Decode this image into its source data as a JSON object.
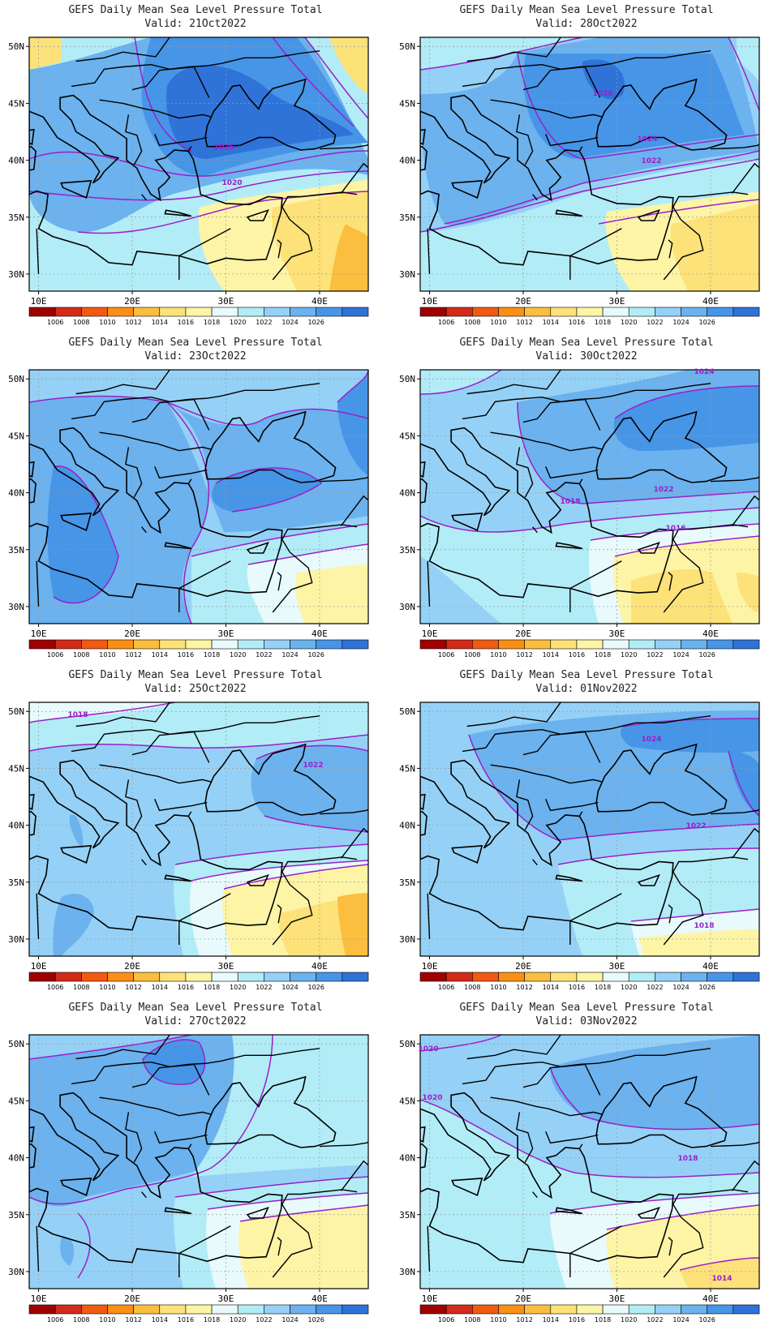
{
  "axes": {
    "lat_labels": [
      "50N",
      "45N",
      "40N",
      "35N",
      "30N"
    ],
    "lon_labels": [
      "10E",
      "20E",
      "30E",
      "40E"
    ]
  },
  "colorbar": {
    "ticks": [
      "1006",
      "1008",
      "1010",
      "1012",
      "1014",
      "1016",
      "1018",
      "1020",
      "1022",
      "1024",
      "1026"
    ],
    "colors": [
      "#a00000",
      "#d42a1a",
      "#f05a12",
      "#f98f14",
      "#fbbe3e",
      "#fde179",
      "#fdf4a6",
      "#e8fafc",
      "#b2ecf7",
      "#95d1f6",
      "#6bb2ee",
      "#4795e7",
      "#2f73d8"
    ]
  },
  "panels": [
    {
      "title": "GEFS Daily Mean Sea Level Pressure Total",
      "valid": "Valid: 21Oct2022",
      "contour_labels": [
        "1026",
        "1020"
      ]
    },
    {
      "title": "GEFS Daily Mean Sea Level Pressure Total",
      "valid": "Valid: 28Oct2022",
      "contour_labels": [
        "1026",
        "1024",
        "1022"
      ]
    },
    {
      "title": "GEFS Daily Mean Sea Level Pressure Total",
      "valid": "Valid: 23Oct2022",
      "contour_labels": []
    },
    {
      "title": "GEFS Daily Mean Sea Level Pressure Total",
      "valid": "Valid: 30Oct2022",
      "contour_labels": [
        "1024",
        "1022",
        "1018",
        "1016"
      ]
    },
    {
      "title": "GEFS Daily Mean Sea Level Pressure Total",
      "valid": "Valid: 25Oct2022",
      "contour_labels": [
        "1018",
        "1022"
      ]
    },
    {
      "title": "GEFS Daily Mean Sea Level Pressure Total",
      "valid": "Valid: 01Nov2022",
      "contour_labels": [
        "1024",
        "1022",
        "1018"
      ]
    },
    {
      "title": "GEFS Daily Mean Sea Level Pressure Total",
      "valid": "Valid: 27Oct2022",
      "contour_labels": []
    },
    {
      "title": "GEFS Daily Mean Sea Level Pressure Total",
      "valid": "Valid: 03Nov2022",
      "contour_labels": [
        "1020",
        "1020",
        "1018",
        "1014"
      ]
    }
  ]
}
